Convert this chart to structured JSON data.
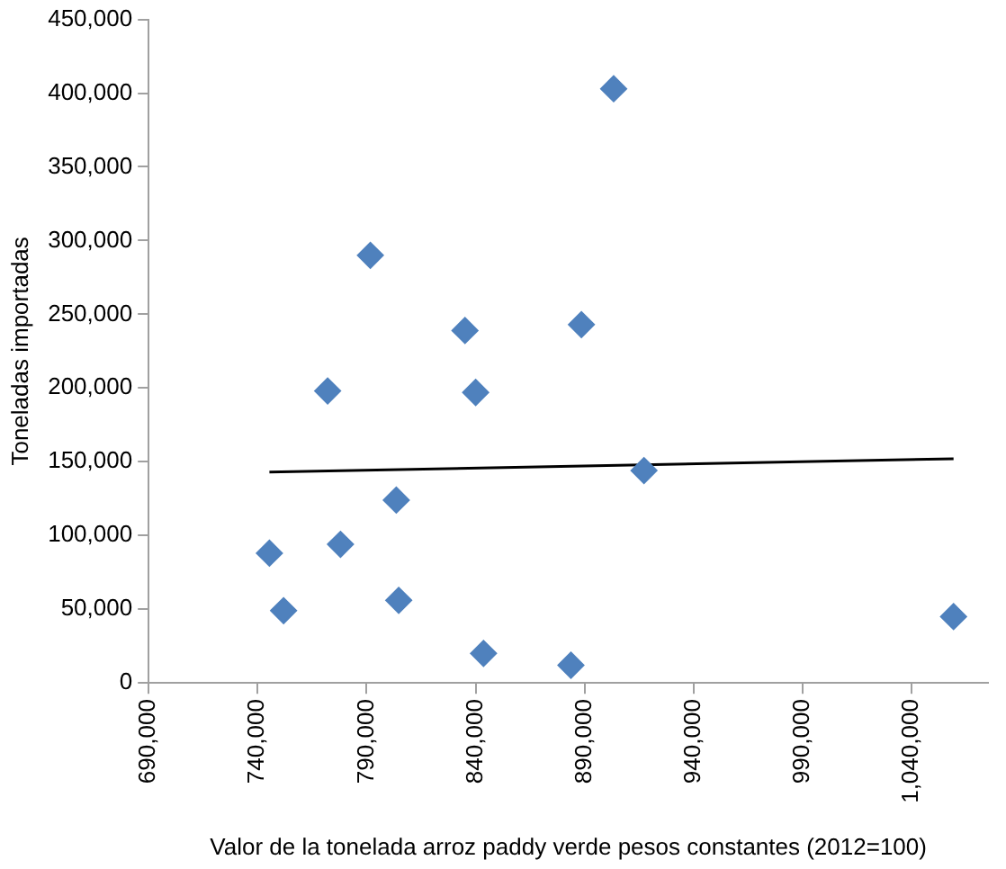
{
  "chart_data": {
    "type": "scatter",
    "xlabel": "Valor de la tonelada arroz paddy verde pesos constantes (2012=100)",
    "ylabel": "Toneladas importadas",
    "series": [
      {
        "color": "#4f81bd",
        "marker": "diamond",
        "x": [
          745400,
          751900,
          772100,
          778000,
          791700,
          803600,
          804700,
          835100,
          840000,
          843600,
          883700,
          888500,
          903300,
          917200,
          1059200
        ],
        "values": [
          88000,
          49000,
          198000,
          94000,
          290000,
          124000,
          56000,
          239000,
          197000,
          20000,
          12000,
          243000,
          403000,
          144000,
          45000
        ]
      },
      {
        "type": "line",
        "color": "#000000",
        "marker": "none",
        "x": [
          745400,
          1059200
        ],
        "values": [
          143000,
          152000
        ]
      }
    ],
    "xlim": [
      690000,
      1075000
    ],
    "xticks": [
      {
        "value": 690000,
        "label": "690,000"
      },
      {
        "value": 740000,
        "label": "740,000"
      },
      {
        "value": 790000,
        "label": "790,000"
      },
      {
        "value": 840000,
        "label": "840,000"
      },
      {
        "value": 890000,
        "label": "890,000"
      },
      {
        "value": 940000,
        "label": "940,000"
      },
      {
        "value": 990000,
        "label": "990,000"
      },
      {
        "value": 1040000,
        "label": "1,040,000"
      }
    ],
    "ylim": [
      0,
      450000
    ],
    "yticks": [
      0,
      {
        "value": 50000,
        "label": "50,000"
      },
      {
        "value": 100000,
        "label": "100,000"
      },
      {
        "value": 150000,
        "label": "150,000"
      },
      {
        "value": 200000,
        "label": "200,000"
      },
      {
        "value": 250000,
        "label": "250,000"
      },
      {
        "value": 300000,
        "label": "300,000"
      },
      {
        "value": 350000,
        "label": "350,000"
      },
      {
        "value": 400000,
        "label": "400,000"
      },
      {
        "value": 450000,
        "label": "450,000"
      }
    ],
    "grid": false,
    "legend": false
  }
}
